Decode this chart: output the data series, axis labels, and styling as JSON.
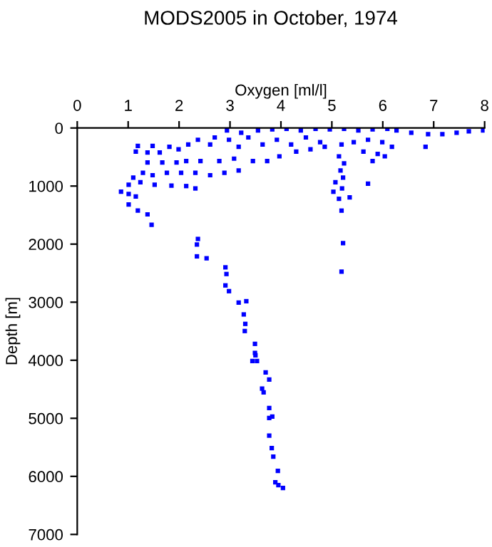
{
  "chart_data": {
    "type": "scatter",
    "title": "MODS2005 in October, 1974",
    "xlabel": "Oxygen [ml/l]",
    "ylabel": "Depth [m]",
    "xlim": [
      0,
      8
    ],
    "xticks": [
      0,
      1,
      2,
      3,
      4,
      5,
      6,
      7,
      8
    ],
    "ylim": [
      7000,
      0
    ],
    "yticks": [
      0,
      1000,
      2000,
      3000,
      4000,
      5000,
      6000,
      7000
    ],
    "grid": false,
    "marker": "square",
    "series": [
      {
        "color": "#0000ff",
        "x": [
          2.94,
          3.22,
          3.55,
          3.83,
          4.11,
          4.39,
          4.68,
          4.96,
          5.24,
          5.52,
          5.8,
          6.09,
          6.27,
          6.56,
          6.89,
          7.17,
          7.69,
          7.97,
          7.45,
          2.7,
          2.61,
          2.98,
          3.17,
          3.36,
          3.64,
          3.92,
          4.2,
          4.49,
          4.77,
          3.97,
          4.3,
          4.58,
          4.86,
          5.43,
          5.71,
          5.99,
          6.18,
          6.84,
          5.62,
          5.9,
          6.04,
          5.8,
          1.19,
          1.48,
          1.81,
          1.15,
          1.38,
          1.62,
          1.99,
          2.18,
          2.37,
          1.38,
          1.67,
          1.95,
          2.14,
          2.42,
          2.79,
          3.08,
          3.45,
          3.73,
          1.1,
          1.29,
          1.48,
          1.76,
          2.04,
          2.32,
          2.61,
          2.89,
          3.17,
          1.01,
          1.24,
          1.52,
          1.85,
          2.14,
          2.32,
          0.86,
          1.01,
          1.15,
          1.01,
          1.19,
          1.38,
          1.46,
          2.37,
          5.19,
          5.14,
          5.24,
          5.17,
          5.22,
          5.07,
          5.2,
          5.03,
          5.14,
          5.19,
          5.35,
          5.71,
          2.35,
          2.35,
          2.54,
          2.91,
          2.93,
          2.91,
          2.98,
          3.17,
          3.32,
          3.27,
          3.3,
          3.29,
          3.49,
          3.49,
          3.5,
          3.44,
          3.53,
          3.7,
          3.77,
          3.63,
          3.66,
          3.77,
          3.77,
          3.83,
          3.77,
          3.82,
          3.85,
          3.94,
          3.89,
          3.95,
          4.04,
          5.22,
          5.19
        ],
        "values": [
          41,
          81,
          41,
          24,
          16,
          41,
          16,
          24,
          16,
          41,
          24,
          16,
          41,
          81,
          106,
          106,
          57,
          41,
          81,
          163,
          285,
          203,
          325,
          163,
          285,
          203,
          285,
          163,
          244,
          488,
          407,
          366,
          325,
          244,
          203,
          244,
          325,
          325,
          407,
          447,
          488,
          569,
          309,
          309,
          325,
          407,
          423,
          423,
          366,
          285,
          203,
          593,
          593,
          593,
          569,
          569,
          569,
          528,
          569,
          569,
          854,
          772,
          813,
          772,
          772,
          772,
          813,
          772,
          732,
          976,
          935,
          976,
          992,
          1000,
          1041,
          1098,
          1138,
          1179,
          1317,
          1423,
          1488,
          1667,
          1911,
          285,
          488,
          610,
          732,
          854,
          935,
          1041,
          1098,
          1220,
          1423,
          1195,
          959,
          2007,
          2211,
          2244,
          2400,
          2515,
          2711,
          2810,
          3007,
          2983,
          3211,
          3374,
          3497,
          3718,
          3874,
          3915,
          4013,
          4013,
          4210,
          4333,
          4488,
          4553,
          4824,
          4996,
          4971,
          5299,
          5512,
          5659,
          5905,
          6101,
          6150,
          6199,
          1983,
          2474
        ]
      }
    ]
  }
}
